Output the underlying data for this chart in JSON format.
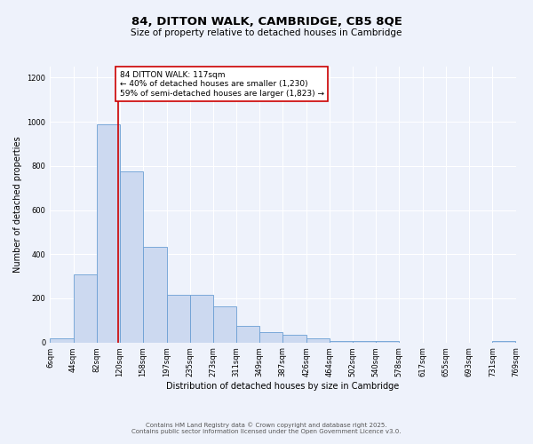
{
  "title": "84, DITTON WALK, CAMBRIDGE, CB5 8QE",
  "subtitle": "Size of property relative to detached houses in Cambridge",
  "xlabel": "Distribution of detached houses by size in Cambridge",
  "ylabel": "Number of detached properties",
  "bar_color": "#ccd9f0",
  "bar_edge_color": "#6b9fd4",
  "background_color": "#eef2fb",
  "grid_color": "#ffffff",
  "bin_edges": [
    6,
    44,
    82,
    120,
    158,
    197,
    235,
    273,
    311,
    349,
    387,
    426,
    464,
    502,
    540,
    578,
    617,
    655,
    693,
    731,
    769
  ],
  "bin_labels": [
    "6sqm",
    "44sqm",
    "82sqm",
    "120sqm",
    "158sqm",
    "197sqm",
    "235sqm",
    "273sqm",
    "311sqm",
    "349sqm",
    "387sqm",
    "426sqm",
    "464sqm",
    "502sqm",
    "540sqm",
    "578sqm",
    "617sqm",
    "655sqm",
    "693sqm",
    "731sqm",
    "769sqm"
  ],
  "bar_heights": [
    20,
    310,
    990,
    775,
    435,
    215,
    215,
    165,
    75,
    48,
    35,
    20,
    5,
    5,
    5,
    0,
    0,
    0,
    0,
    5
  ],
  "ylim": [
    0,
    1250
  ],
  "yticks": [
    0,
    200,
    400,
    600,
    800,
    1000,
    1200
  ],
  "red_line_x": 117,
  "annotation_text": "84 DITTON WALK: 117sqm\n← 40% of detached houses are smaller (1,230)\n59% of semi-detached houses are larger (1,823) →",
  "annotation_box_color": "#ffffff",
  "annotation_box_edge_color": "#cc0000",
  "footer_line1": "Contains HM Land Registry data © Crown copyright and database right 2025.",
  "footer_line2": "Contains public sector information licensed under the Open Government Licence v3.0.",
  "title_fontsize": 9.5,
  "subtitle_fontsize": 7.5,
  "axis_label_fontsize": 7,
  "tick_fontsize": 6,
  "annotation_fontsize": 6.5,
  "ylabel_fontsize": 7
}
